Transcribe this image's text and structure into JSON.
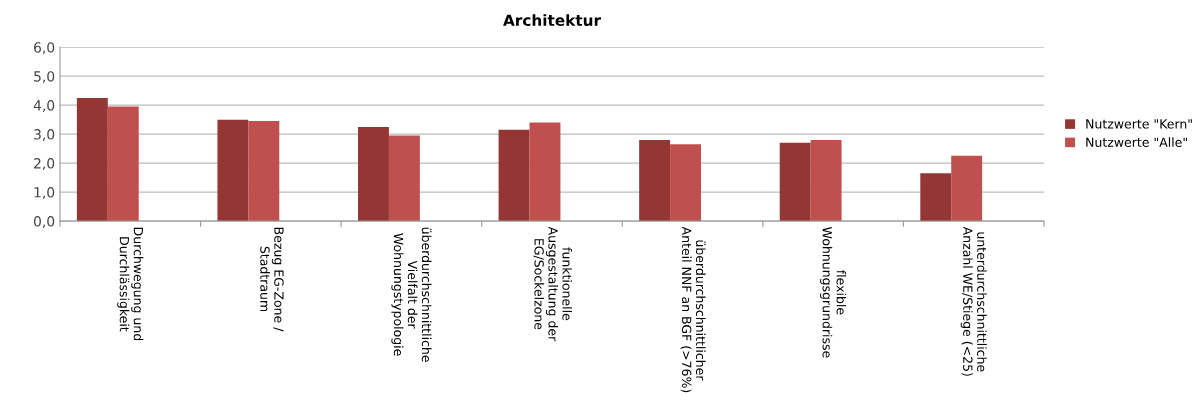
{
  "chart_data": {
    "type": "bar",
    "title": "Architektur",
    "categories": [
      "Durchwegung und\nDurchlässigkeit",
      "Bezug EG-Zone /\nStadtraum",
      "überdurchschnittliche\nVielfalt der\nWohnungstypologie",
      "funktionelle\nAusgestaltung der\nEG/Sockelzone",
      "überdurchschnittlicher\nAnteil NNF an BGF (>76%)",
      "flexible\nWohnungsgrundrisse",
      "unterdurchschnittliche\nAnzahl WE/Stiege (<25)"
    ],
    "series": [
      {
        "name": "Nutzwerte \"Kern\"",
        "color": "#943634",
        "values": [
          4.25,
          3.5,
          3.25,
          3.15,
          2.8,
          2.7,
          1.65
        ]
      },
      {
        "name": "Nutzwerte \"Alle\"",
        "color": "#c0504d",
        "values": [
          3.95,
          3.45,
          2.95,
          3.4,
          2.65,
          2.8,
          2.25
        ]
      }
    ],
    "ylim": [
      0,
      6
    ],
    "yticks": [
      {
        "value": 0,
        "label": "0,0"
      },
      {
        "value": 1,
        "label": "1,0"
      },
      {
        "value": 2,
        "label": "2,0"
      },
      {
        "value": 3,
        "label": "3,0"
      },
      {
        "value": 4,
        "label": "4,0"
      },
      {
        "value": 5,
        "label": "5,0"
      },
      {
        "value": 6,
        "label": "6,0"
      }
    ],
    "grid": "y",
    "legend": "right"
  }
}
